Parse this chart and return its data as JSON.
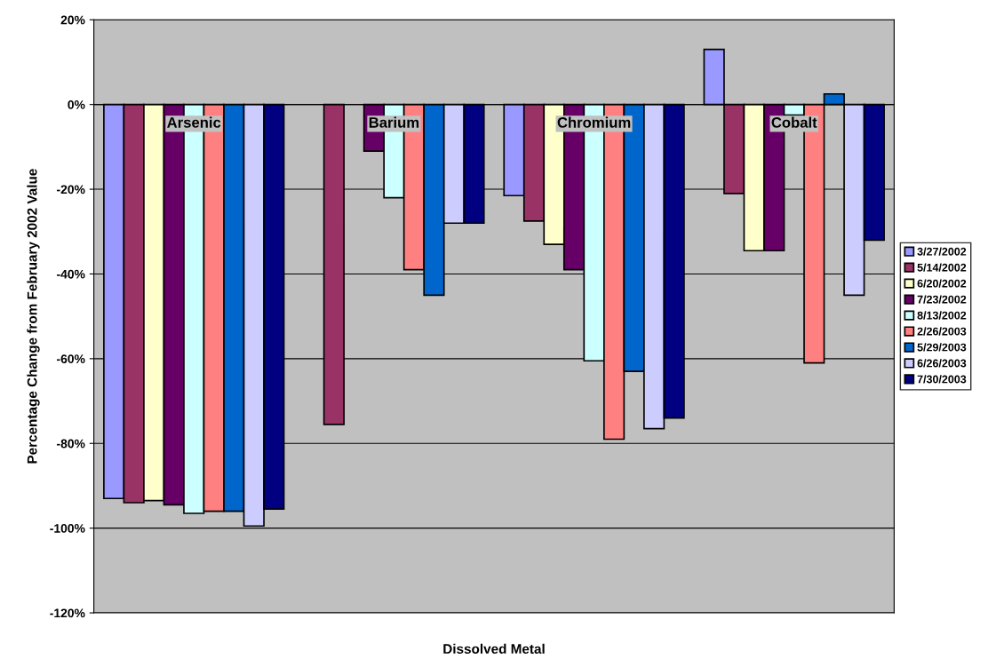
{
  "chart_data": {
    "type": "bar",
    "xlabel": "Dissolved Metal",
    "ylabel": "Percentage Change from February 2002 Value",
    "categories": [
      "Arsenic",
      "Barium",
      "Chromium",
      "Cobalt"
    ],
    "series": [
      {
        "name": "3/27/2002",
        "color": "#9999ff",
        "values": [
          -93,
          null,
          -21.5,
          13
        ]
      },
      {
        "name": "5/14/2002",
        "color": "#993366",
        "values": [
          -94,
          -75.5,
          -27.5,
          -21
        ]
      },
      {
        "name": "6/20/2002",
        "color": "#ffffcc",
        "values": [
          -93.5,
          null,
          -33,
          -34.5
        ]
      },
      {
        "name": "7/23/2002",
        "color": "#660066",
        "values": [
          -94.5,
          -11,
          -39,
          -34.5
        ]
      },
      {
        "name": "8/13/2002",
        "color": "#ccffff",
        "values": [
          -96.5,
          -22,
          -60.5,
          -2.5
        ]
      },
      {
        "name": "2/26/2003",
        "color": "#ff8080",
        "values": [
          -96,
          -39,
          -79,
          -61
        ]
      },
      {
        "name": "5/29/2003",
        "color": "#0066cc",
        "values": [
          -96,
          -45,
          -63,
          2.5
        ]
      },
      {
        "name": "6/26/2003",
        "color": "#ccccff",
        "values": [
          -99.5,
          -28,
          -76.5,
          -45
        ]
      },
      {
        "name": "7/30/2003",
        "color": "#000080",
        "values": [
          -95.5,
          -28,
          -74,
          -32
        ]
      }
    ],
    "ylim": [
      -120,
      20
    ],
    "yticks": [
      {
        "value": -120,
        "label": "-120%"
      },
      {
        "value": -100,
        "label": "-100%"
      },
      {
        "value": -80,
        "label": "-80%"
      },
      {
        "value": -60,
        "label": "-60%"
      },
      {
        "value": -40,
        "label": "-40%"
      },
      {
        "value": -20,
        "label": "-20%"
      },
      {
        "value": 0,
        "label": "0%"
      },
      {
        "value": 20,
        "label": "20%"
      }
    ],
    "grid": "y",
    "legend": "right"
  }
}
